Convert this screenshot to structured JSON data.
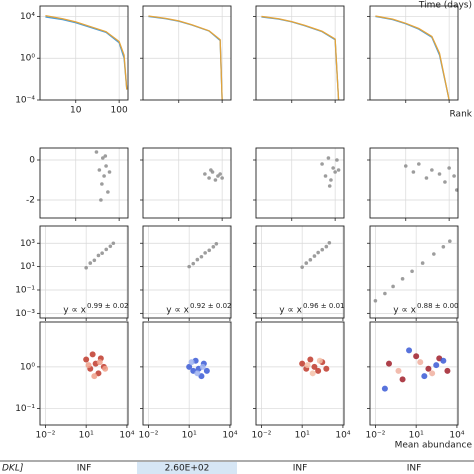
{
  "chart_data": [
    {
      "type": "line",
      "title": "Time (days)",
      "xlabel": "Rank",
      "xscale": "log",
      "yscale": "log",
      "grid": true,
      "xtick_labels": "first",
      "xlim": [
        1.5,
        160
      ],
      "ylim": [
        0.0001,
        100000
      ],
      "xticks": [
        10,
        100
      ],
      "yticks": [
        {
          "value": 0.0001,
          "label": "10⁻⁴"
        },
        {
          "value": 1,
          "label": "10⁰"
        },
        {
          "value": 10000,
          "label": "10⁴"
        }
      ],
      "panels": [
        {
          "x": [
            2,
            5,
            10,
            20,
            50,
            100,
            130,
            150
          ],
          "series": [
            {
              "color": "#4c9bd6",
              "values": [
                9000,
                5000,
                2500,
                1000,
                300,
                30,
                1,
                0.001
              ]
            },
            {
              "color": "#e3a33a",
              "values": [
                12000,
                6000,
                3000,
                1200,
                350,
                40,
                2,
                0.001
              ]
            }
          ]
        },
        {
          "x": [
            2,
            5,
            10,
            20,
            50,
            90,
            100
          ],
          "series": [
            {
              "color": "#4c9bd6",
              "values": [
                10000,
                6000,
                3500,
                1500,
                400,
                50,
                0.0001
              ]
            },
            {
              "color": "#e3a33a",
              "values": [
                11000,
                6500,
                3800,
                1600,
                420,
                60,
                0.0001
              ]
            }
          ]
        },
        {
          "x": [
            2,
            5,
            10,
            20,
            50,
            100,
            120
          ],
          "series": [
            {
              "color": "#4c9bd6",
              "values": [
                9000,
                5500,
                3000,
                1300,
                350,
                60,
                0.0001
              ]
            },
            {
              "color": "#e3a33a",
              "values": [
                10000,
                6000,
                3200,
                1400,
                380,
                70,
                0.0001
              ]
            }
          ]
        },
        {
          "x": [
            2,
            5,
            10,
            20,
            40,
            60,
            100
          ],
          "series": [
            {
              "color": "#4c9bd6",
              "values": [
                10000,
                5000,
                2000,
                600,
                100,
                2,
                0.0001
              ]
            },
            {
              "color": "#e3a33a",
              "values": [
                11000,
                5500,
                2200,
                700,
                120,
                3,
                0.0001
              ]
            }
          ]
        }
      ]
    },
    {
      "type": "scatter",
      "xscale": "log",
      "yscale": "linear",
      "grid": true,
      "xtick_labels": "none",
      "xlim": [
        1.5,
        160
      ],
      "ylim": [
        -2.9,
        0.6
      ],
      "yticks": [
        -2,
        0
      ],
      "xticks": [
        10,
        100
      ],
      "panels": [
        {
          "series": [
            {
              "color": "#8c8c8c",
              "x": [
                30,
                35,
                40,
                42,
                45,
                50,
                55,
                60,
                38,
                48
              ],
              "values": [
                0.4,
                -0.5,
                -1.2,
                0.1,
                -0.8,
                -0.3,
                -1.6,
                -0.6,
                -2.0,
                0.2
              ]
            }
          ]
        },
        {
          "series": [
            {
              "color": "#8c8c8c",
              "x": [
                40,
                50,
                60,
                70,
                80,
                90,
                100,
                55
              ],
              "values": [
                -0.7,
                -0.9,
                -0.6,
                -1.0,
                -0.8,
                -0.7,
                -0.9,
                -0.5
              ]
            }
          ]
        },
        {
          "series": [
            {
              "color": "#8c8c8c",
              "x": [
                50,
                60,
                70,
                80,
                90,
                100,
                110,
                120,
                75
              ],
              "values": [
                -0.2,
                -0.8,
                0.1,
                -1.0,
                -0.4,
                -0.6,
                0.0,
                -0.5,
                -1.3
              ]
            }
          ]
        },
        {
          "series": [
            {
              "color": "#8c8c8c",
              "x": [
                10,
                15,
                20,
                30,
                40,
                60,
                80,
                100,
                130,
                150
              ],
              "values": [
                -0.3,
                -0.6,
                -0.2,
                -0.9,
                -0.5,
                -0.7,
                -1.1,
                -0.4,
                -0.8,
                -1.5
              ]
            }
          ]
        }
      ]
    },
    {
      "type": "scatter",
      "xscale": "log",
      "yscale": "log",
      "grid": true,
      "xtick_labels": "none",
      "xlim": [
        0.004,
        12000
      ],
      "ylim": [
        0.0004,
        30000
      ],
      "xticks": [
        {
          "value": 0.01,
          "label": "10⁻²"
        },
        {
          "value": 10,
          "label": "10¹"
        },
        {
          "value": 10000,
          "label": "10⁴"
        }
      ],
      "yticks": [
        {
          "value": 0.001,
          "label": "10⁻³"
        },
        {
          "value": 0.1,
          "label": "10⁻¹"
        },
        {
          "value": 10,
          "label": "10¹"
        },
        {
          "value": 1000,
          "label": "10³"
        }
      ],
      "panels": [
        {
          "annotation": "y ∝ x",
          "exponent": "0.99 ± 0.02",
          "series": [
            {
              "color": "#8c8c8c",
              "x": [
                10,
                20,
                40,
                80,
                150,
                300,
                600,
                1000
              ],
              "values": [
                8,
                20,
                35,
                90,
                140,
                300,
                550,
                1000
              ]
            }
          ]
        },
        {
          "annotation": "y ∝ x",
          "exponent": "0.92 ± 0.02",
          "series": [
            {
              "color": "#8c8c8c",
              "x": [
                10,
                20,
                40,
                80,
                150,
                300,
                600,
                1000
              ],
              "values": [
                10,
                18,
                40,
                70,
                150,
                250,
                500,
                900
              ]
            }
          ]
        },
        {
          "annotation": "y ∝ x",
          "exponent": "0.96 ± 0.01",
          "series": [
            {
              "color": "#8c8c8c",
              "x": [
                10,
                20,
                40,
                80,
                150,
                300,
                600,
                1000
              ],
              "values": [
                9,
                20,
                38,
                80,
                160,
                280,
                520,
                1100
              ]
            }
          ]
        },
        {
          "annotation": "y ∝ x",
          "exponent": "0.88 ± 0.00",
          "series": [
            {
              "color": "#8c8c8c",
              "x": [
                0.01,
                0.05,
                0.2,
                1,
                5,
                30,
                200,
                1000,
                3000
              ],
              "values": [
                0.012,
                0.05,
                0.2,
                0.9,
                4,
                20,
                120,
                500,
                1500
              ]
            }
          ]
        }
      ]
    },
    {
      "type": "scatter",
      "xlabel": "Mean abundance",
      "xscale": "log",
      "yscale": "log",
      "grid": true,
      "xtick_labels": "all",
      "xlim": [
        0.004,
        12000
      ],
      "ylim": [
        0.04,
        12
      ],
      "xticks": [
        {
          "value": 0.01,
          "label": "10⁻²"
        },
        {
          "value": 10,
          "label": "10¹"
        },
        {
          "value": 10000,
          "label": "10⁴"
        }
      ],
      "yticks": [
        {
          "value": 0.1,
          "label": "10⁻¹"
        },
        {
          "value": 1,
          "label": "10⁰"
        }
      ],
      "panels": [
        {
          "series": [
            {
              "color": "#c0392b",
              "x": [
                10,
                20,
                30,
                50,
                80,
                120,
                200
              ],
              "values": [
                1.5,
                0.9,
                2.0,
                1.2,
                0.7,
                1.6,
                1.0
              ]
            },
            {
              "color": "#f0a08a",
              "x": [
                15,
                40,
                100,
                250
              ],
              "values": [
                1.1,
                0.6,
                1.3,
                0.9
              ]
            }
          ]
        },
        {
          "series": [
            {
              "color": "#3b5bd6",
              "x": [
                10,
                20,
                30,
                50,
                80,
                120,
                200
              ],
              "values": [
                1.0,
                0.8,
                1.4,
                0.9,
                0.6,
                1.2,
                0.8
              ]
            },
            {
              "color": "#9fb3f0",
              "x": [
                15,
                40,
                100
              ],
              "values": [
                1.3,
                0.7,
                1.0
              ]
            }
          ]
        },
        {
          "series": [
            {
              "color": "#c0392b",
              "x": [
                10,
                20,
                40,
                80,
                150,
                300,
                600
              ],
              "values": [
                1.2,
                0.9,
                1.5,
                1.0,
                0.8,
                1.3,
                0.9
              ]
            },
            {
              "color": "#f4c1a8",
              "x": [
                25,
                60,
                200
              ],
              "values": [
                1.1,
                0.7,
                1.4
              ]
            }
          ]
        },
        {
          "series": [
            {
              "color": "#a01f2a",
              "x": [
                0.1,
                1,
                10,
                80,
                500,
                2000
              ],
              "values": [
                1.2,
                0.5,
                1.8,
                0.9,
                1.6,
                0.8
              ]
            },
            {
              "color": "#3b5bd6",
              "x": [
                0.05,
                3,
                40,
                300,
                1000
              ],
              "values": [
                0.3,
                2.5,
                0.6,
                1.1,
                1.4
              ]
            },
            {
              "color": "#f0b0a0",
              "x": [
                0.5,
                20,
                150
              ],
              "values": [
                0.8,
                1.3,
                0.7
              ]
            }
          ]
        }
      ]
    }
  ],
  "table": {
    "row_label": "DKL]",
    "cells": [
      "INF",
      "2.60E+02",
      "INF",
      "INF"
    ],
    "highlight": 1
  }
}
